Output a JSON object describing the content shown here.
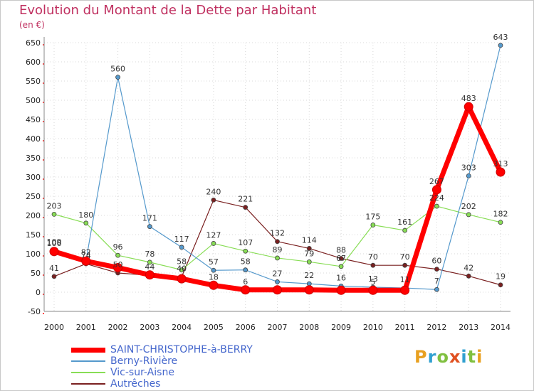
{
  "title": "Evolution du Montant de la Dette par Habitant",
  "subtitle": "(en €)",
  "logo": {
    "text": "Proxiti",
    "colors": [
      "#e8a020",
      "#30a0d0",
      "#80c040",
      "#e05020",
      "#30a0d0",
      "#80c040",
      "#e8a020"
    ]
  },
  "chart_data": {
    "type": "line",
    "x": [
      "2000",
      "2001",
      "2002",
      "2003",
      "2004",
      "2005",
      "2006",
      "2007",
      "2008",
      "2009",
      "2010",
      "2011",
      "2012",
      "2013",
      "2014"
    ],
    "ylim": [
      -50,
      650
    ],
    "yticks": [
      "-50",
      "0",
      "50",
      "100",
      "150",
      "200",
      "250",
      "300",
      "350",
      "400",
      "450",
      "500",
      "550",
      "600",
      "650"
    ],
    "grid": true,
    "legend_position": "bottom-left",
    "series": [
      {
        "name": "Autrêches",
        "color": "#7a2020",
        "width": 1.2,
        "marker": 3,
        "values": [
          41,
          74,
          50,
          44,
          40,
          240,
          221,
          132,
          114,
          88,
          70,
          70,
          60,
          42,
          19
        ],
        "labels": [
          "41",
          "74",
          "50",
          "44",
          "40",
          "240",
          "221",
          "132",
          "114",
          "88",
          "70",
          "70",
          "60",
          "42",
          "19"
        ]
      },
      {
        "name": "Vic-sur-Aisne",
        "color": "#88dd55",
        "width": 1.2,
        "marker": 3,
        "values": [
          203,
          180,
          96,
          78,
          58,
          127,
          107,
          89,
          79,
          67,
          175,
          161,
          224,
          202,
          182
        ],
        "labels": [
          "203",
          "180",
          "96",
          "78",
          "58",
          "127",
          "107",
          "89",
          "79",
          "67",
          "175",
          "161",
          "224",
          "202",
          "182"
        ]
      },
      {
        "name": "Berny-Rivière",
        "color": "#5599cc",
        "width": 1.2,
        "marker": 3,
        "values": [
          109,
          82,
          560,
          171,
          117,
          57,
          58,
          27,
          22,
          16,
          13,
          11,
          7,
          303,
          643
        ],
        "labels": [
          "109",
          "82",
          "560",
          "171",
          "117",
          "57",
          "58",
          "27",
          "22",
          "16",
          "13",
          "11",
          "7",
          "303",
          "643"
        ]
      },
      {
        "name": "SAINT-CHRISTOPHE-à-BERRY",
        "color": "#ff0000",
        "width": 7,
        "marker": 6,
        "values": [
          106,
          81,
          64,
          45,
          35,
          18,
          6,
          6,
          6,
          5,
          5,
          5,
          267,
          483,
          313
        ],
        "labels": [
          "106",
          "",
          "",
          "",
          "",
          "18",
          "6",
          "",
          "",
          "",
          "5",
          "",
          "267",
          "483",
          "313"
        ]
      }
    ]
  },
  "legend": [
    {
      "label": "SAINT-CHRISTOPHE-à-BERRY",
      "color": "#ff0000",
      "thickness": 7
    },
    {
      "label": "Berny-Rivière",
      "color": "#5599cc",
      "thickness": 2
    },
    {
      "label": "Vic-sur-Aisne",
      "color": "#88dd55",
      "thickness": 2
    },
    {
      "label": "Autrêches",
      "color": "#7a2020",
      "thickness": 2
    }
  ]
}
